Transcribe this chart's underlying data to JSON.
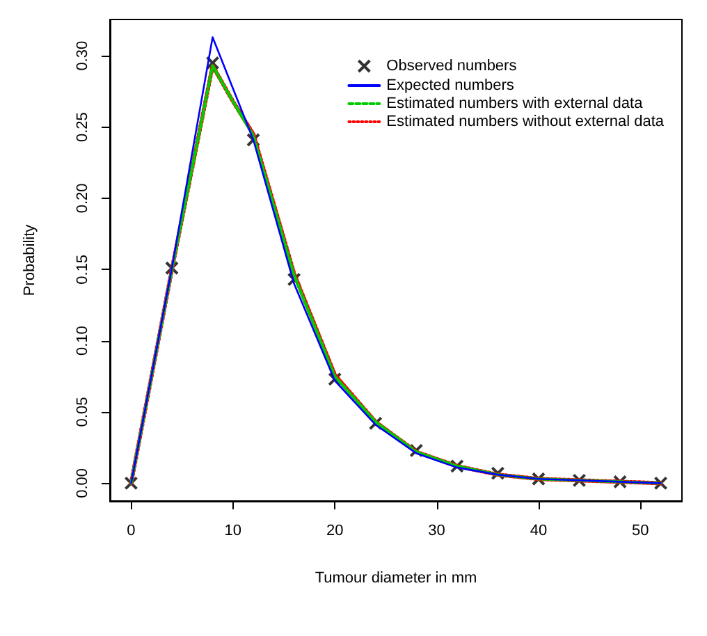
{
  "chart_data": {
    "type": "line",
    "xlabel": "Tumour diameter in mm",
    "ylabel": "Probability",
    "xlim": [
      -2.08,
      54.08
    ],
    "xticks": [
      0,
      10,
      20,
      30,
      40,
      50
    ],
    "ylim": [
      -0.0125,
      0.3255
    ],
    "yticks": [
      {
        "value": 0,
        "label": "0.00"
      },
      {
        "value": 0.05,
        "label": "0.05"
      },
      {
        "value": 0.1,
        "label": "0.10"
      },
      {
        "value": 0.15,
        "label": "0.15"
      },
      {
        "value": 0.2,
        "label": "0.20"
      },
      {
        "value": 0.25,
        "label": "0.25"
      },
      {
        "value": 0.3,
        "label": "0.30"
      }
    ],
    "grid": false,
    "legend": "top right",
    "series": [
      {
        "name": "Observed numbers",
        "type": "scatter",
        "marker": "cross",
        "color": "#000000",
        "x": [
          0,
          4,
          8,
          12,
          16,
          20,
          24,
          28,
          32,
          36,
          40,
          44,
          48,
          52
        ],
        "values": [
          0,
          0.151,
          0.295,
          0.241,
          0.143,
          0.073,
          0.042,
          0.023,
          0.012,
          0.007,
          0.003,
          0.002,
          0.001,
          0.0
        ]
      },
      {
        "name": "Expected numbers",
        "type": "line",
        "line_style": "solid",
        "color": "#0000ff",
        "x": [
          0,
          4,
          8,
          12,
          16,
          20,
          24,
          28,
          32,
          36,
          40,
          44,
          48,
          52
        ],
        "values": [
          0,
          0.151,
          0.313,
          0.241,
          0.14,
          0.072,
          0.041,
          0.021,
          0.011,
          0.006,
          0.003,
          0.002,
          0.001,
          0.0
        ]
      },
      {
        "name": "Estimated numbers with external data",
        "type": "line",
        "line_style": "dashed",
        "color": "#00cc00",
        "x": [
          0,
          4,
          8,
          10,
          12,
          16,
          20,
          24,
          28,
          32,
          36,
          40,
          44,
          48,
          52
        ],
        "values": [
          0,
          0.15,
          0.293,
          0.268,
          0.244,
          0.146,
          0.075,
          0.043,
          0.022,
          0.012,
          0.006,
          0.003,
          0.002,
          0.001,
          0.0
        ]
      },
      {
        "name": "Estimated numbers without external data",
        "type": "line",
        "line_style": "dotted",
        "color": "#ff0000",
        "x": [
          0,
          4,
          8,
          10,
          12,
          16,
          20,
          24,
          28,
          32,
          36,
          40,
          44,
          48,
          52
        ],
        "values": [
          0,
          0.15,
          0.293,
          0.268,
          0.245,
          0.147,
          0.076,
          0.043,
          0.022,
          0.012,
          0.006,
          0.003,
          0.002,
          0.001,
          0.0
        ]
      }
    ]
  }
}
